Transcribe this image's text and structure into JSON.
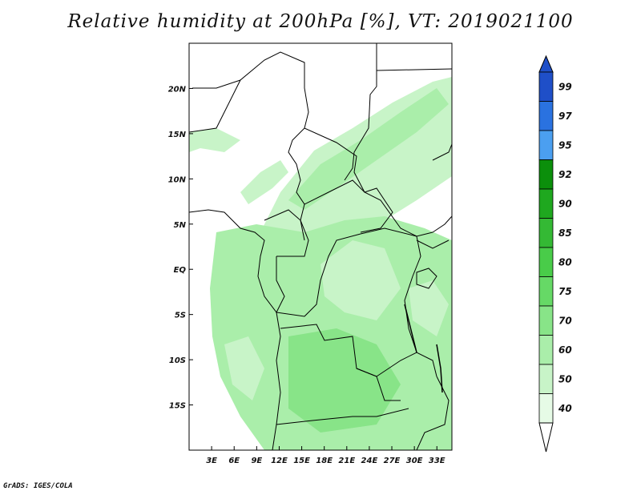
{
  "title": "Relative humidity at 200hPa [%], VT: 2019021100",
  "credit": "GrADS: IGES/COLA",
  "map": {
    "lat_ticks": [
      "20N",
      "15N",
      "10N",
      "5N",
      "EQ",
      "5S",
      "10S",
      "15S"
    ],
    "lon_ticks": [
      "3E",
      "6E",
      "9E",
      "12E",
      "15E",
      "18E",
      "21E",
      "24E",
      "27E",
      "30E",
      "33E"
    ],
    "lon_range": [
      0,
      35
    ],
    "lat_range": [
      -20,
      25
    ]
  },
  "colorbar": {
    "levels": [
      "99",
      "97",
      "95",
      "92",
      "90",
      "85",
      "80",
      "75",
      "70",
      "60",
      "50",
      "40"
    ],
    "colors": [
      "#1f4fc8",
      "#2a72e0",
      "#4b9ff0",
      "#0b8f0b",
      "#1fa81f",
      "#34b934",
      "#49cc49",
      "#66d966",
      "#88e488",
      "#aaeeaa",
      "#c8f4c8",
      "#e6fbe6"
    ]
  }
}
